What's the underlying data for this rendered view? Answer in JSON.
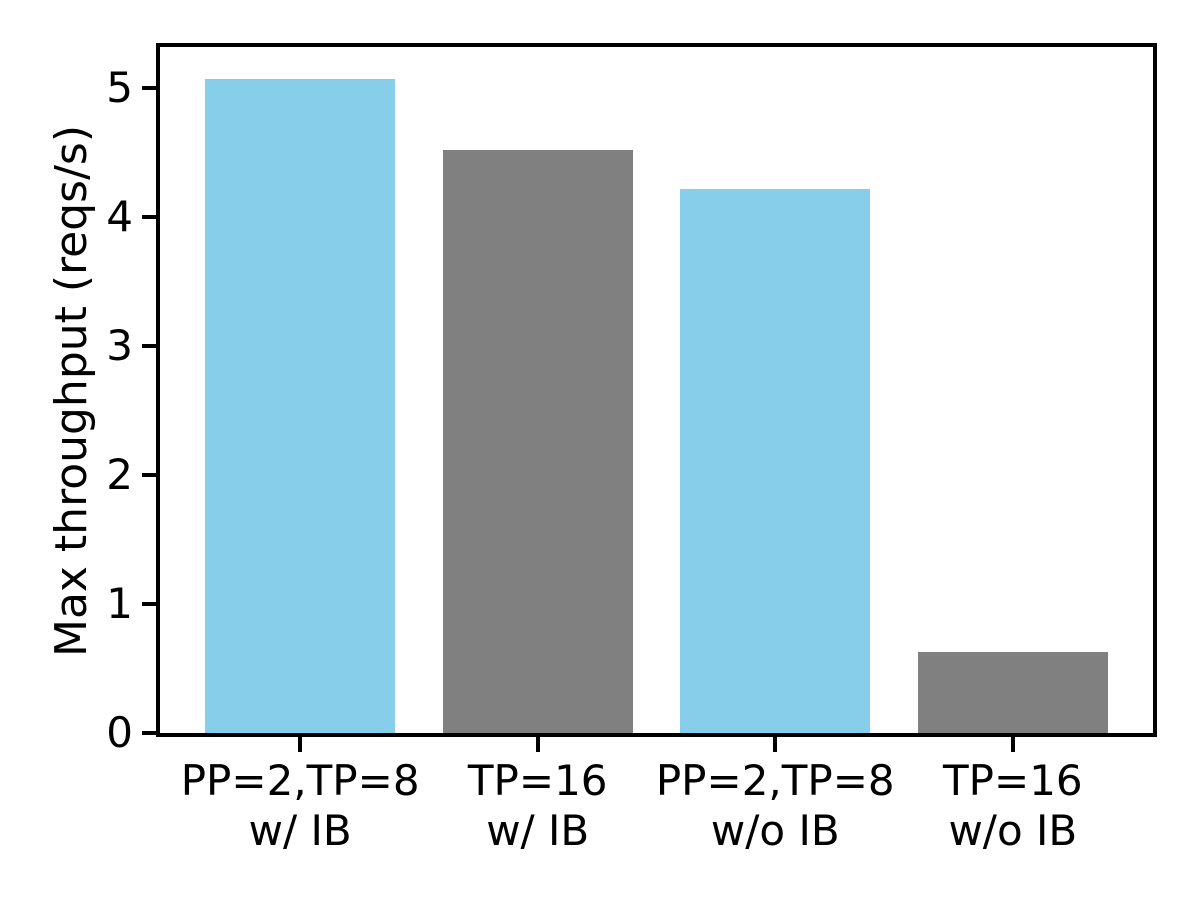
{
  "chart_data": {
    "type": "bar",
    "title": "",
    "xlabel": "",
    "ylabel": "Max throughput (reqs/s)",
    "categories": [
      "PP=2,TP=8 w/ IB",
      "TP=16 w/ IB",
      "PP=2,TP=8 w/o IB",
      "TP=16 w/o IB"
    ],
    "category_lines": [
      [
        "PP=2,TP=8",
        "w/ IB"
      ],
      [
        "TP=16",
        "w/ IB"
      ],
      [
        "PP=2,TP=8",
        "w/o IB"
      ],
      [
        "TP=16",
        "w/o IB"
      ]
    ],
    "values": [
      5.07,
      4.52,
      4.22,
      0.63
    ],
    "bar_colors": [
      "#87CEEB",
      "#808080",
      "#87CEEB",
      "#808080"
    ],
    "bar_width": 0.8,
    "yticks": [
      0,
      1,
      2,
      3,
      4,
      5
    ],
    "ylim": [
      0,
      5.32
    ],
    "xlim": [
      -0.59,
      3.59
    ],
    "grid": false,
    "legend": null
  },
  "colors": {
    "bar_blue": "#87CEEB",
    "bar_gray": "#808080",
    "axis": "#000000",
    "background": "#FFFFFF"
  }
}
